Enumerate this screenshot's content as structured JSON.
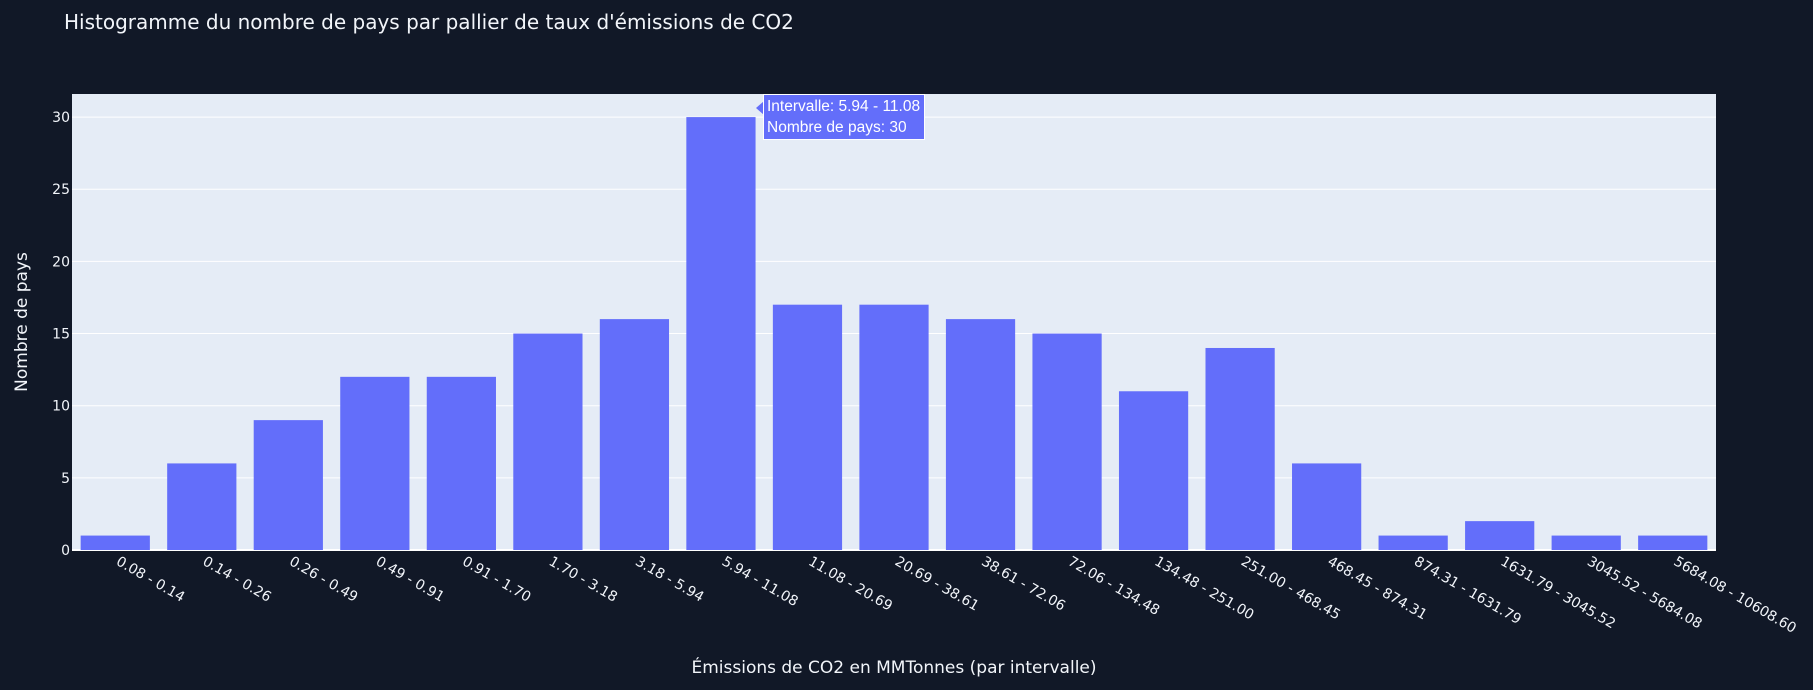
{
  "chart_data": {
    "type": "bar",
    "title": "Histogramme du nombre de pays par pallier de taux d'émissions de CO2",
    "xlabel": "Émissions de CO2 en MMTonnes (par intervalle)",
    "ylabel": "Nombre de pays",
    "categories": [
      "0.08 - 0.14",
      "0.14 - 0.26",
      "0.26 - 0.49",
      "0.49 - 0.91",
      "0.91 - 1.70",
      "1.70 - 3.18",
      "3.18 - 5.94",
      "5.94 - 11.08",
      "11.08 - 20.69",
      "20.69 - 38.61",
      "38.61 - 72.06",
      "72.06 - 134.48",
      "134.48 - 251.00",
      "251.00 - 468.45",
      "468.45 - 874.31",
      "874.31 - 1631.79",
      "1631.79 - 3045.52",
      "3045.52 - 5684.08",
      "5684.08 - 10608.60"
    ],
    "values": [
      1,
      6,
      9,
      12,
      12,
      15,
      16,
      30,
      17,
      17,
      16,
      15,
      11,
      14,
      6,
      1,
      2,
      1,
      1
    ],
    "yticks": [
      0,
      5,
      10,
      15,
      20,
      25,
      30
    ],
    "ylim": [
      0,
      31.6
    ],
    "grid": true,
    "colors": {
      "bar": "#636efa",
      "plot_bg": "#e5ecf6",
      "page_bg": "#111827",
      "text": "#f2f5fa",
      "grid": "#ffffff"
    }
  },
  "tooltip": {
    "line1": "Intervalle: 5.94 - 11.08",
    "line2": "Nombre de pays: 30"
  }
}
